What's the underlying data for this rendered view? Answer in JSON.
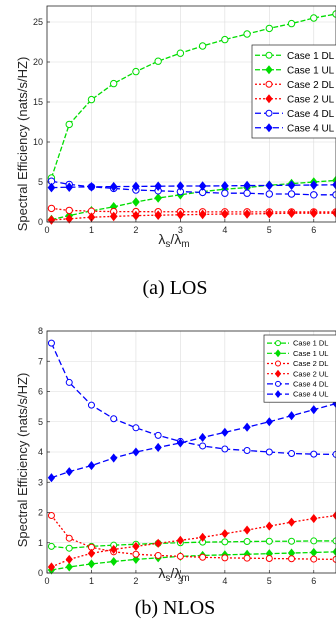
{
  "chart_data": [
    {
      "type": "line",
      "caption": "(a)  LOS",
      "xlabel_main": "λ",
      "xlabel_sub1": "s",
      "xlabel_sep": "/λ",
      "xlabel_sub2": "m",
      "ylabel": "Spectral Efficiency (nats/s/HZ)",
      "xlim": [
        0,
        6.5
      ],
      "ylim": [
        0,
        27
      ],
      "xticks": [
        0,
        1,
        2,
        3,
        4,
        5,
        6
      ],
      "yticks": [
        0,
        5,
        10,
        15,
        20,
        25
      ],
      "grid": true,
      "legend_position": "right",
      "x": [
        0.1,
        0.5,
        1.0,
        1.5,
        2.0,
        2.5,
        3.0,
        3.5,
        4.0,
        4.5,
        5.0,
        5.5,
        6.0,
        6.5
      ],
      "series": [
        {
          "name": "Case 1 DL",
          "color": "#00dd00",
          "dash": "5,2",
          "marker": "circle",
          "filled": false,
          "values": [
            5.5,
            12.2,
            15.3,
            17.3,
            18.8,
            20.1,
            21.1,
            22.0,
            22.8,
            23.5,
            24.2,
            24.8,
            25.5,
            26.0
          ]
        },
        {
          "name": "Case 1 UL",
          "color": "#00dd00",
          "dash": "5,2",
          "marker": "diamond",
          "filled": true,
          "values": [
            0.3,
            0.8,
            1.4,
            1.9,
            2.5,
            3.0,
            3.4,
            3.8,
            4.1,
            4.3,
            4.6,
            4.8,
            5.0,
            5.2
          ]
        },
        {
          "name": "Case 2 DL",
          "color": "#ff0000",
          "dash": "2,2",
          "marker": "circle",
          "filled": false,
          "values": [
            1.7,
            1.45,
            1.35,
            1.3,
            1.3,
            1.28,
            1.28,
            1.27,
            1.27,
            1.27,
            1.26,
            1.26,
            1.26,
            1.26
          ]
        },
        {
          "name": "Case 2 UL",
          "color": "#ff0000",
          "dash": "2,2",
          "marker": "diamond",
          "filled": true,
          "values": [
            0.25,
            0.4,
            0.6,
            0.7,
            0.8,
            0.85,
            0.9,
            0.95,
            1.0,
            1.0,
            1.05,
            1.1,
            1.1,
            1.1
          ]
        },
        {
          "name": "Case 4 DL",
          "color": "#0000ff",
          "dash": "6,3",
          "marker": "circle",
          "filled": false,
          "values": [
            5.1,
            4.7,
            4.4,
            4.2,
            4.0,
            3.9,
            3.8,
            3.7,
            3.6,
            3.6,
            3.5,
            3.5,
            3.4,
            3.4
          ]
        },
        {
          "name": "Case 4 UL",
          "color": "#0000ff",
          "dash": "6,3",
          "marker": "diamond",
          "filled": true,
          "values": [
            4.3,
            4.35,
            4.4,
            4.42,
            4.45,
            4.47,
            4.5,
            4.5,
            4.52,
            4.55,
            4.57,
            4.6,
            4.62,
            4.65
          ]
        }
      ]
    },
    {
      "type": "line",
      "caption": "(b)  NLOS",
      "xlabel_main": "λ",
      "xlabel_sub1": "s",
      "xlabel_sep": "/λ",
      "xlabel_sub2": "m",
      "ylabel": "Spectral Efficiency (nats/s/HZ)",
      "xlim": [
        0,
        6.5
      ],
      "ylim": [
        0,
        8
      ],
      "xticks": [
        0,
        1,
        2,
        3,
        4,
        5,
        6
      ],
      "yticks": [
        0,
        1,
        2,
        3,
        4,
        5,
        6,
        7,
        8
      ],
      "grid": true,
      "legend_position": "top-right",
      "x": [
        0.1,
        0.5,
        1.0,
        1.5,
        2.0,
        2.5,
        3.0,
        3.5,
        4.0,
        4.5,
        5.0,
        5.5,
        6.0,
        6.5
      ],
      "series": [
        {
          "name": "Case 1 DL",
          "color": "#00dd00",
          "dash": "5,2",
          "marker": "circle",
          "filled": false,
          "values": [
            0.88,
            0.82,
            0.88,
            0.92,
            0.95,
            0.98,
            1.0,
            1.02,
            1.03,
            1.04,
            1.05,
            1.05,
            1.06,
            1.06
          ]
        },
        {
          "name": "Case 1 UL",
          "color": "#00dd00",
          "dash": "5,2",
          "marker": "diamond",
          "filled": true,
          "values": [
            0.1,
            0.2,
            0.3,
            0.38,
            0.45,
            0.5,
            0.55,
            0.58,
            0.6,
            0.62,
            0.64,
            0.66,
            0.68,
            0.7
          ]
        },
        {
          "name": "Case 2 DL",
          "color": "#ff0000",
          "dash": "2,2",
          "marker": "circle",
          "filled": false,
          "values": [
            1.9,
            1.15,
            0.85,
            0.7,
            0.62,
            0.58,
            0.55,
            0.52,
            0.5,
            0.49,
            0.48,
            0.47,
            0.46,
            0.45
          ]
        },
        {
          "name": "Case 2 UL",
          "color": "#ff0000",
          "dash": "2,2",
          "marker": "diamond",
          "filled": true,
          "values": [
            0.2,
            0.45,
            0.65,
            0.78,
            0.88,
            0.98,
            1.08,
            1.18,
            1.3,
            1.42,
            1.55,
            1.68,
            1.8,
            1.9
          ]
        },
        {
          "name": "Case 4 DL",
          "color": "#0000ff",
          "dash": "6,3",
          "marker": "circle",
          "filled": false,
          "values": [
            7.6,
            6.3,
            5.55,
            5.1,
            4.8,
            4.55,
            4.35,
            4.2,
            4.1,
            4.05,
            4.0,
            3.95,
            3.93,
            3.92
          ]
        },
        {
          "name": "Case 4 UL",
          "color": "#0000ff",
          "dash": "6,3",
          "marker": "diamond",
          "filled": true,
          "values": [
            3.15,
            3.35,
            3.55,
            3.8,
            4.0,
            4.15,
            4.3,
            4.48,
            4.65,
            4.82,
            5.0,
            5.2,
            5.4,
            5.6
          ]
        }
      ]
    }
  ]
}
